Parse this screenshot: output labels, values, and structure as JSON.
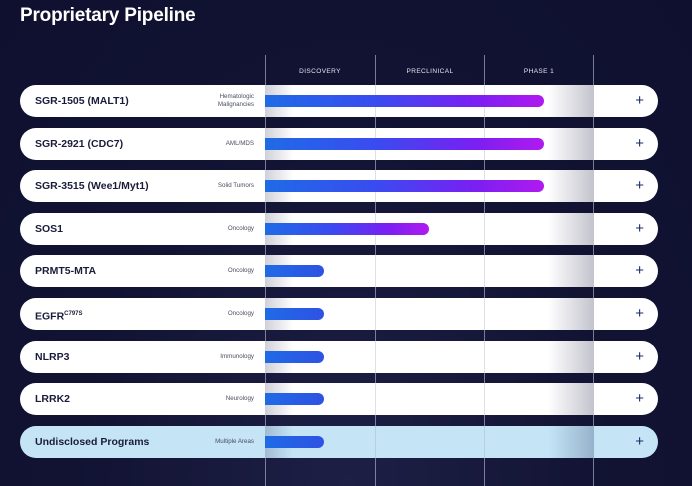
{
  "title": "Proprietary Pipeline",
  "phases": [
    "DISCOVERY",
    "PRECLINICAL",
    "PHASE 1"
  ],
  "programs": [
    {
      "name": "SGR-1505 (MALT1)",
      "indication": "Hematologic Malignancies",
      "progress": 0.85,
      "highlight": false
    },
    {
      "name": "SGR-2921 (CDC7)",
      "indication": "AML/MDS",
      "progress": 0.85,
      "highlight": false
    },
    {
      "name": "SGR-3515 (Wee1/Myt1)",
      "indication": "Solid Tumors",
      "progress": 0.85,
      "highlight": false
    },
    {
      "name": "SOS1",
      "indication": "Oncology",
      "progress": 0.5,
      "highlight": false
    },
    {
      "name": "PRMT5-MTA",
      "indication": "Oncology",
      "progress": 0.18,
      "highlight": false
    },
    {
      "name": "EGFR",
      "name_sup": "C797S",
      "indication": "Oncology",
      "progress": 0.18,
      "highlight": false
    },
    {
      "name": "NLRP3",
      "indication": "Immunology",
      "progress": 0.18,
      "highlight": false
    },
    {
      "name": "LRRK2",
      "indication": "Neurology",
      "progress": 0.18,
      "highlight": false
    },
    {
      "name": "Undisclosed Programs",
      "indication": "Multiple Areas",
      "progress": 0.18,
      "highlight": true
    }
  ],
  "expand_label": "+",
  "colors": {
    "background": "#121333",
    "bar_start": "#1f6be6",
    "bar_end": "#b01aef",
    "highlight_row": "#c5e5f7"
  }
}
